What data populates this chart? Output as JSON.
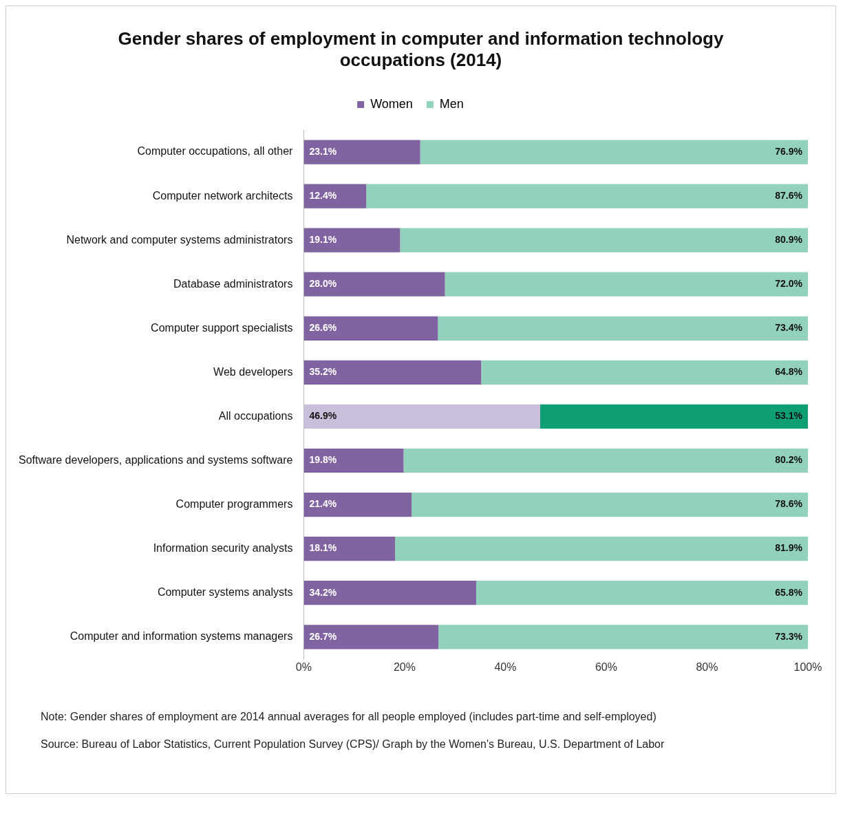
{
  "chart_data": {
    "type": "bar",
    "orientation": "horizontal",
    "stacked": true,
    "title": "Gender shares of employment in computer and information technology occupations (2014)",
    "categories": [
      "Computer occupations, all other",
      "Computer network architects",
      "Network and computer systems administrators",
      "Database administrators",
      "Computer support specialists",
      "Web developers",
      "All occupations",
      "Software developers, applications and systems software",
      "Computer programmers",
      "Information security analysts",
      "Computer systems analysts",
      "Computer and information systems managers"
    ],
    "series": [
      {
        "name": "Women",
        "color": "#8064a2",
        "colors": [
          "#8064a2",
          "#8064a2",
          "#8064a2",
          "#8064a2",
          "#8064a2",
          "#8064a2",
          "#c9bfdb",
          "#8064a2",
          "#8064a2",
          "#8064a2",
          "#8064a2",
          "#8064a2"
        ],
        "values": [
          23.1,
          12.4,
          19.1,
          28.0,
          26.6,
          35.2,
          46.9,
          19.8,
          21.4,
          18.1,
          34.2,
          26.7
        ],
        "value_labels": [
          "23.1%",
          "12.4%",
          "19.1%",
          "28.0%",
          "26.6%",
          "35.2%",
          "46.9%",
          "19.8%",
          "21.4%",
          "18.1%",
          "34.2%",
          "26.7%"
        ]
      },
      {
        "name": "Men",
        "color": "#92d1bb",
        "colors": [
          "#92d1bb",
          "#92d1bb",
          "#92d1bb",
          "#92d1bb",
          "#92d1bb",
          "#92d1bb",
          "#0e9e74",
          "#92d1bb",
          "#92d1bb",
          "#92d1bb",
          "#92d1bb",
          "#92d1bb"
        ],
        "values": [
          76.9,
          87.6,
          80.9,
          72.0,
          73.4,
          64.8,
          53.1,
          80.2,
          78.6,
          81.9,
          65.8,
          73.3
        ],
        "value_labels": [
          "76.9%",
          "87.6%",
          "80.9%",
          "72.0%",
          "73.4%",
          "64.8%",
          "53.1%",
          "80.2%",
          "78.6%",
          "81.9%",
          "65.8%",
          "73.3%"
        ]
      }
    ],
    "xlim": [
      0,
      100
    ],
    "xticks": [
      {
        "value": 0,
        "label": "0%"
      },
      {
        "value": 20,
        "label": "20%"
      },
      {
        "value": 40,
        "label": "40%"
      },
      {
        "value": 60,
        "label": "60%"
      },
      {
        "value": 80,
        "label": "80%"
      },
      {
        "value": 100,
        "label": "100%"
      }
    ],
    "grid": false,
    "legend": "top",
    "annotations": [
      "Note: Gender shares of employment are 2014 annual averages for all people employed (includes part-time and self-employed)",
      "Source: Bureau of Labor Statistics, Current Population Survey (CPS)/ Graph by the Women's Bureau, U.S. Department of Labor"
    ]
  }
}
